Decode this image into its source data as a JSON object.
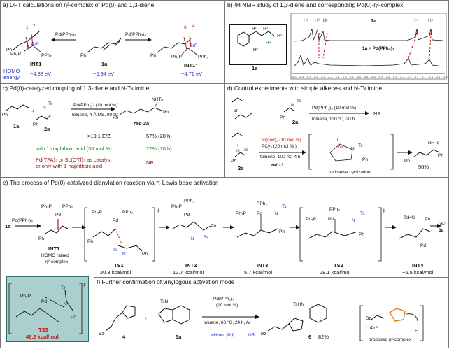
{
  "panel_a": {
    "title": "a) DFT calculations on η²-complex of Pd(0) and 1,3-diene",
    "reagent_left": "Pd(PPh₃)₄",
    "reagent_right": "Pd(PPh₃)₄",
    "int1_label": "INT1",
    "int1_energy": "−4.88 eV",
    "homo_label": "HOMO",
    "energy_label": "energy",
    "diene_label": "1a",
    "diene_energy": "−5.94 eV",
    "int1p_label": "INT1'",
    "int1p_energy": "−4.71 eV",
    "pd_label": "Pd⁰",
    "pph3": "PPh₃",
    "ph3p": "Ph₃P",
    "ph": "Ph",
    "num1": "1",
    "num2": "2",
    "num3": "3",
    "num4": "4"
  },
  "panel_b": {
    "title": "b) ¹H NMR study of 1,3-diene and corresponding Pd(0)-η²-complex",
    "compound_label": "1a",
    "spec_top_label": "1a",
    "spec_bottom_label": "1a + Pd(PPh₃)₄",
    "peak_h2": "H²",
    "peak_h3": "H³",
    "peak_h1": "H¹",
    "peak_h4": "H⁴",
    "peak_h5": "H⁵",
    "h1": "H¹",
    "h2": "H²",
    "h3": "H³",
    "h4": "H⁴",
    "h5": "H⁵",
    "axis_ticks": [
      "6.9",
      "6.8",
      "6.7",
      "6.6",
      "6.5",
      "6.4",
      "6.3",
      "6.2",
      "6.1",
      "6.0",
      "5.9",
      "5.8",
      "5.7",
      "5.6",
      "5.5",
      "5.4",
      "5.3",
      "5.2",
      "5.1",
      "5.0",
      "4.9",
      "4.8"
    ]
  },
  "panel_c": {
    "title": "c) Pd(0)-catalyzed coupling of 1,3-diene and N-Ts imine",
    "reagent1": "1a",
    "reagent2": "2a",
    "conditions1": "Pd(PPh₃)₄ (10 mol %)",
    "conditions2": "toluene, 4 Å MS, 80 °C",
    "product": "rac-3a",
    "ez": ">19:1 E/Z",
    "yield1": "57% (20 h)",
    "additive_text": "with 1-naphthoic acid (30 mol %)",
    "yield2": "72% (10 h)",
    "control_text1": "Pd(TFA)₂ or Sc(OTf)₃ as catalyst",
    "control_text2": "or only with 1-naphthoic acid",
    "nr": "NR",
    "plus": "+",
    "nhts": "NHTs",
    "ts": "Ts",
    "n": "N",
    "ph": "Ph"
  },
  "panel_d": {
    "title": "d) Control experiments with simple alkenes and N-Ts imine",
    "or_text": "or",
    "reagent2a": "2a",
    "cond1": "Pd(PPh₃)₄ (10 mol %)",
    "cond2": "toluene, 130 °C, 20 h",
    "nr": "NR",
    "ni_cond1": "Ni(cod)₂ (10 mol %)",
    "ni_cond2": "PCy₃ (20 mol % )",
    "ni_cond3": "toluene, 100 °C, 4 h",
    "ref": "ref 13",
    "oxcyc": "oxidative cyclization",
    "yield": "56%",
    "reagent2a_b": "2a",
    "ni": "Ni",
    "l": "L",
    "nhts": "NHTs",
    "ts": "Ts",
    "n": "N",
    "ph": "Ph",
    "plus": "+"
  },
  "panel_e": {
    "title": "e) The process of Pd(0)-catalyzed dienylation reaction via π-Lewis base activation",
    "start": "1a",
    "reagent": "Pd(PPh₃)₄",
    "int1": "INT1",
    "int1_desc1": "HOMO raised",
    "int1_desc2": "η²-complex",
    "ts1": "TS1",
    "ts1_e": "20.3 kcal/mol",
    "int2": "INT2",
    "int2_e": "12.7 kcal/mol",
    "int3": "INT3",
    "int3_e": "5.7 kcal/mol",
    "ts2": "TS2",
    "ts2_e": "29.1 kcal/mol",
    "int4": "INT4",
    "int4_e": "−6.5 kcal/mol",
    "product1": "rac-",
    "product2": "3a",
    "ts3": "TS3",
    "ts3_e": "46.2 kcal/mol",
    "pd": "Pd",
    "ph3p": "Ph₃P",
    "pph3": "PPh₃",
    "ts": "Ts",
    "n": "N",
    "ph": "Ph",
    "tshn": "TsHN",
    "dagger": "‡"
  },
  "panel_f": {
    "title": "f) Further confirmation of vinylogous activation mode",
    "reagent4": "4",
    "reagent5a": "5a",
    "cond1": "Pd(PPh₃)₄",
    "cond2": "(10 mol %)",
    "cond3": "toluene, 60 °C, 24 h, Ar",
    "without": "without [Pd]",
    "nr": "NR",
    "product": "6",
    "yield": "82%",
    "proposed": "proposed η²-complex",
    "bz": "Bz",
    "tsn": "TsN",
    "tshn": "TsHN",
    "lnpd": "LnPd⁰",
    "e": "E",
    "plus": "+"
  },
  "colors": {
    "blue": "#1a33c8",
    "green": "#168a16",
    "red": "#c21414",
    "orange": "#e07b18",
    "ts3_bg": "#aacfcd",
    "ts3_border": "#2b6f6e"
  }
}
